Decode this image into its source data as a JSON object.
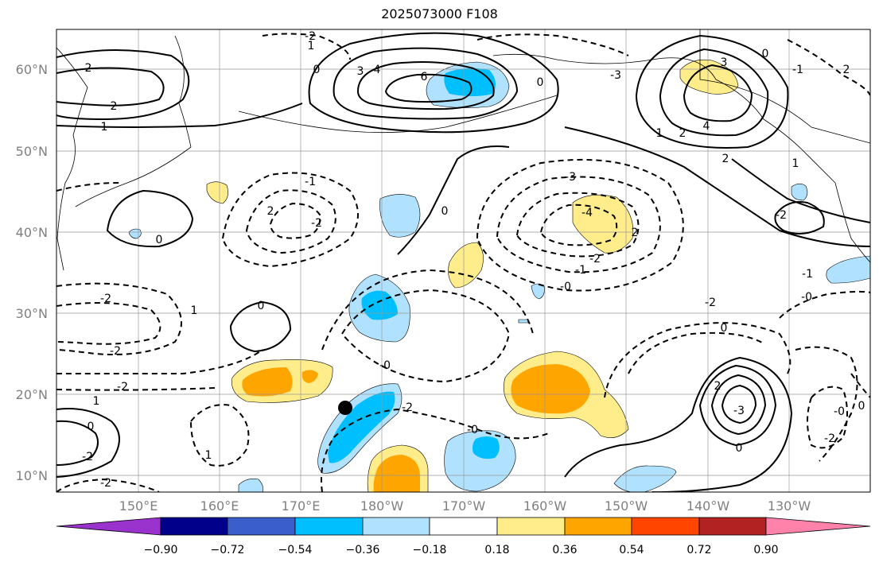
{
  "title": "2025073000 F108",
  "map": {
    "lon_ticks": [
      "150°E",
      "160°E",
      "170°E",
      "180°W",
      "170°W",
      "160°W",
      "150°W",
      "140°W",
      "130°W"
    ],
    "lat_ticks": [
      "60°N",
      "50°N",
      "40°N",
      "30°N",
      "20°N",
      "10°N"
    ],
    "contour_labels": [
      {
        "text": "2"
      },
      {
        "text": "2"
      },
      {
        "text": "1"
      },
      {
        "text": "0"
      },
      {
        "text": "3"
      },
      {
        "text": "4"
      },
      {
        "text": "6"
      },
      {
        "text": "-2"
      },
      {
        "text": "1"
      },
      {
        "text": "3"
      },
      {
        "text": "0"
      },
      {
        "text": "-1"
      },
      {
        "text": "2"
      },
      {
        "text": "4"
      },
      {
        "text": "1"
      },
      {
        "text": "2"
      },
      {
        "text": "2"
      },
      {
        "text": "-1"
      },
      {
        "text": "-2"
      },
      {
        "text": "2"
      },
      {
        "text": "0"
      },
      {
        "text": "0"
      },
      {
        "text": "-3"
      },
      {
        "text": "-4"
      },
      {
        "text": "2"
      },
      {
        "text": "-2"
      },
      {
        "text": "-1"
      },
      {
        "text": "-0"
      },
      {
        "text": "-2"
      },
      {
        "text": "1"
      },
      {
        "text": "0"
      },
      {
        "text": "-2"
      },
      {
        "text": "-2"
      },
      {
        "text": "-0"
      },
      {
        "text": "-2"
      },
      {
        "text": "1"
      },
      {
        "text": "0"
      },
      {
        "text": "-2"
      },
      {
        "text": "1"
      },
      {
        "text": "-2"
      },
      {
        "text": "-2"
      },
      {
        "text": "0"
      },
      {
        "text": "-3"
      },
      {
        "text": "2"
      },
      {
        "text": "0"
      },
      {
        "text": "-1"
      },
      {
        "text": "-0"
      },
      {
        "text": "-2"
      },
      {
        "text": "-2"
      },
      {
        "text": "0"
      },
      {
        "text": "-0"
      },
      {
        "text": "-3"
      },
      {
        "text": "1"
      },
      {
        "text": "0"
      },
      {
        "text": "-0"
      }
    ]
  },
  "colorbar": {
    "labels": [
      "−0.90",
      "−0.72",
      "−0.54",
      "−0.36",
      "−0.18",
      "0.18",
      "0.36",
      "0.54",
      "0.72",
      "0.90"
    ],
    "colors": [
      "#9a32cd",
      "#00008b",
      "#3a5fcd",
      "#00bfff",
      "#b0e2ff",
      "#ffffff",
      "#ffec8b",
      "#ffa500",
      "#ff4500",
      "#b22222",
      "#ff82ab"
    ]
  },
  "marker": {
    "color": "#000000"
  }
}
